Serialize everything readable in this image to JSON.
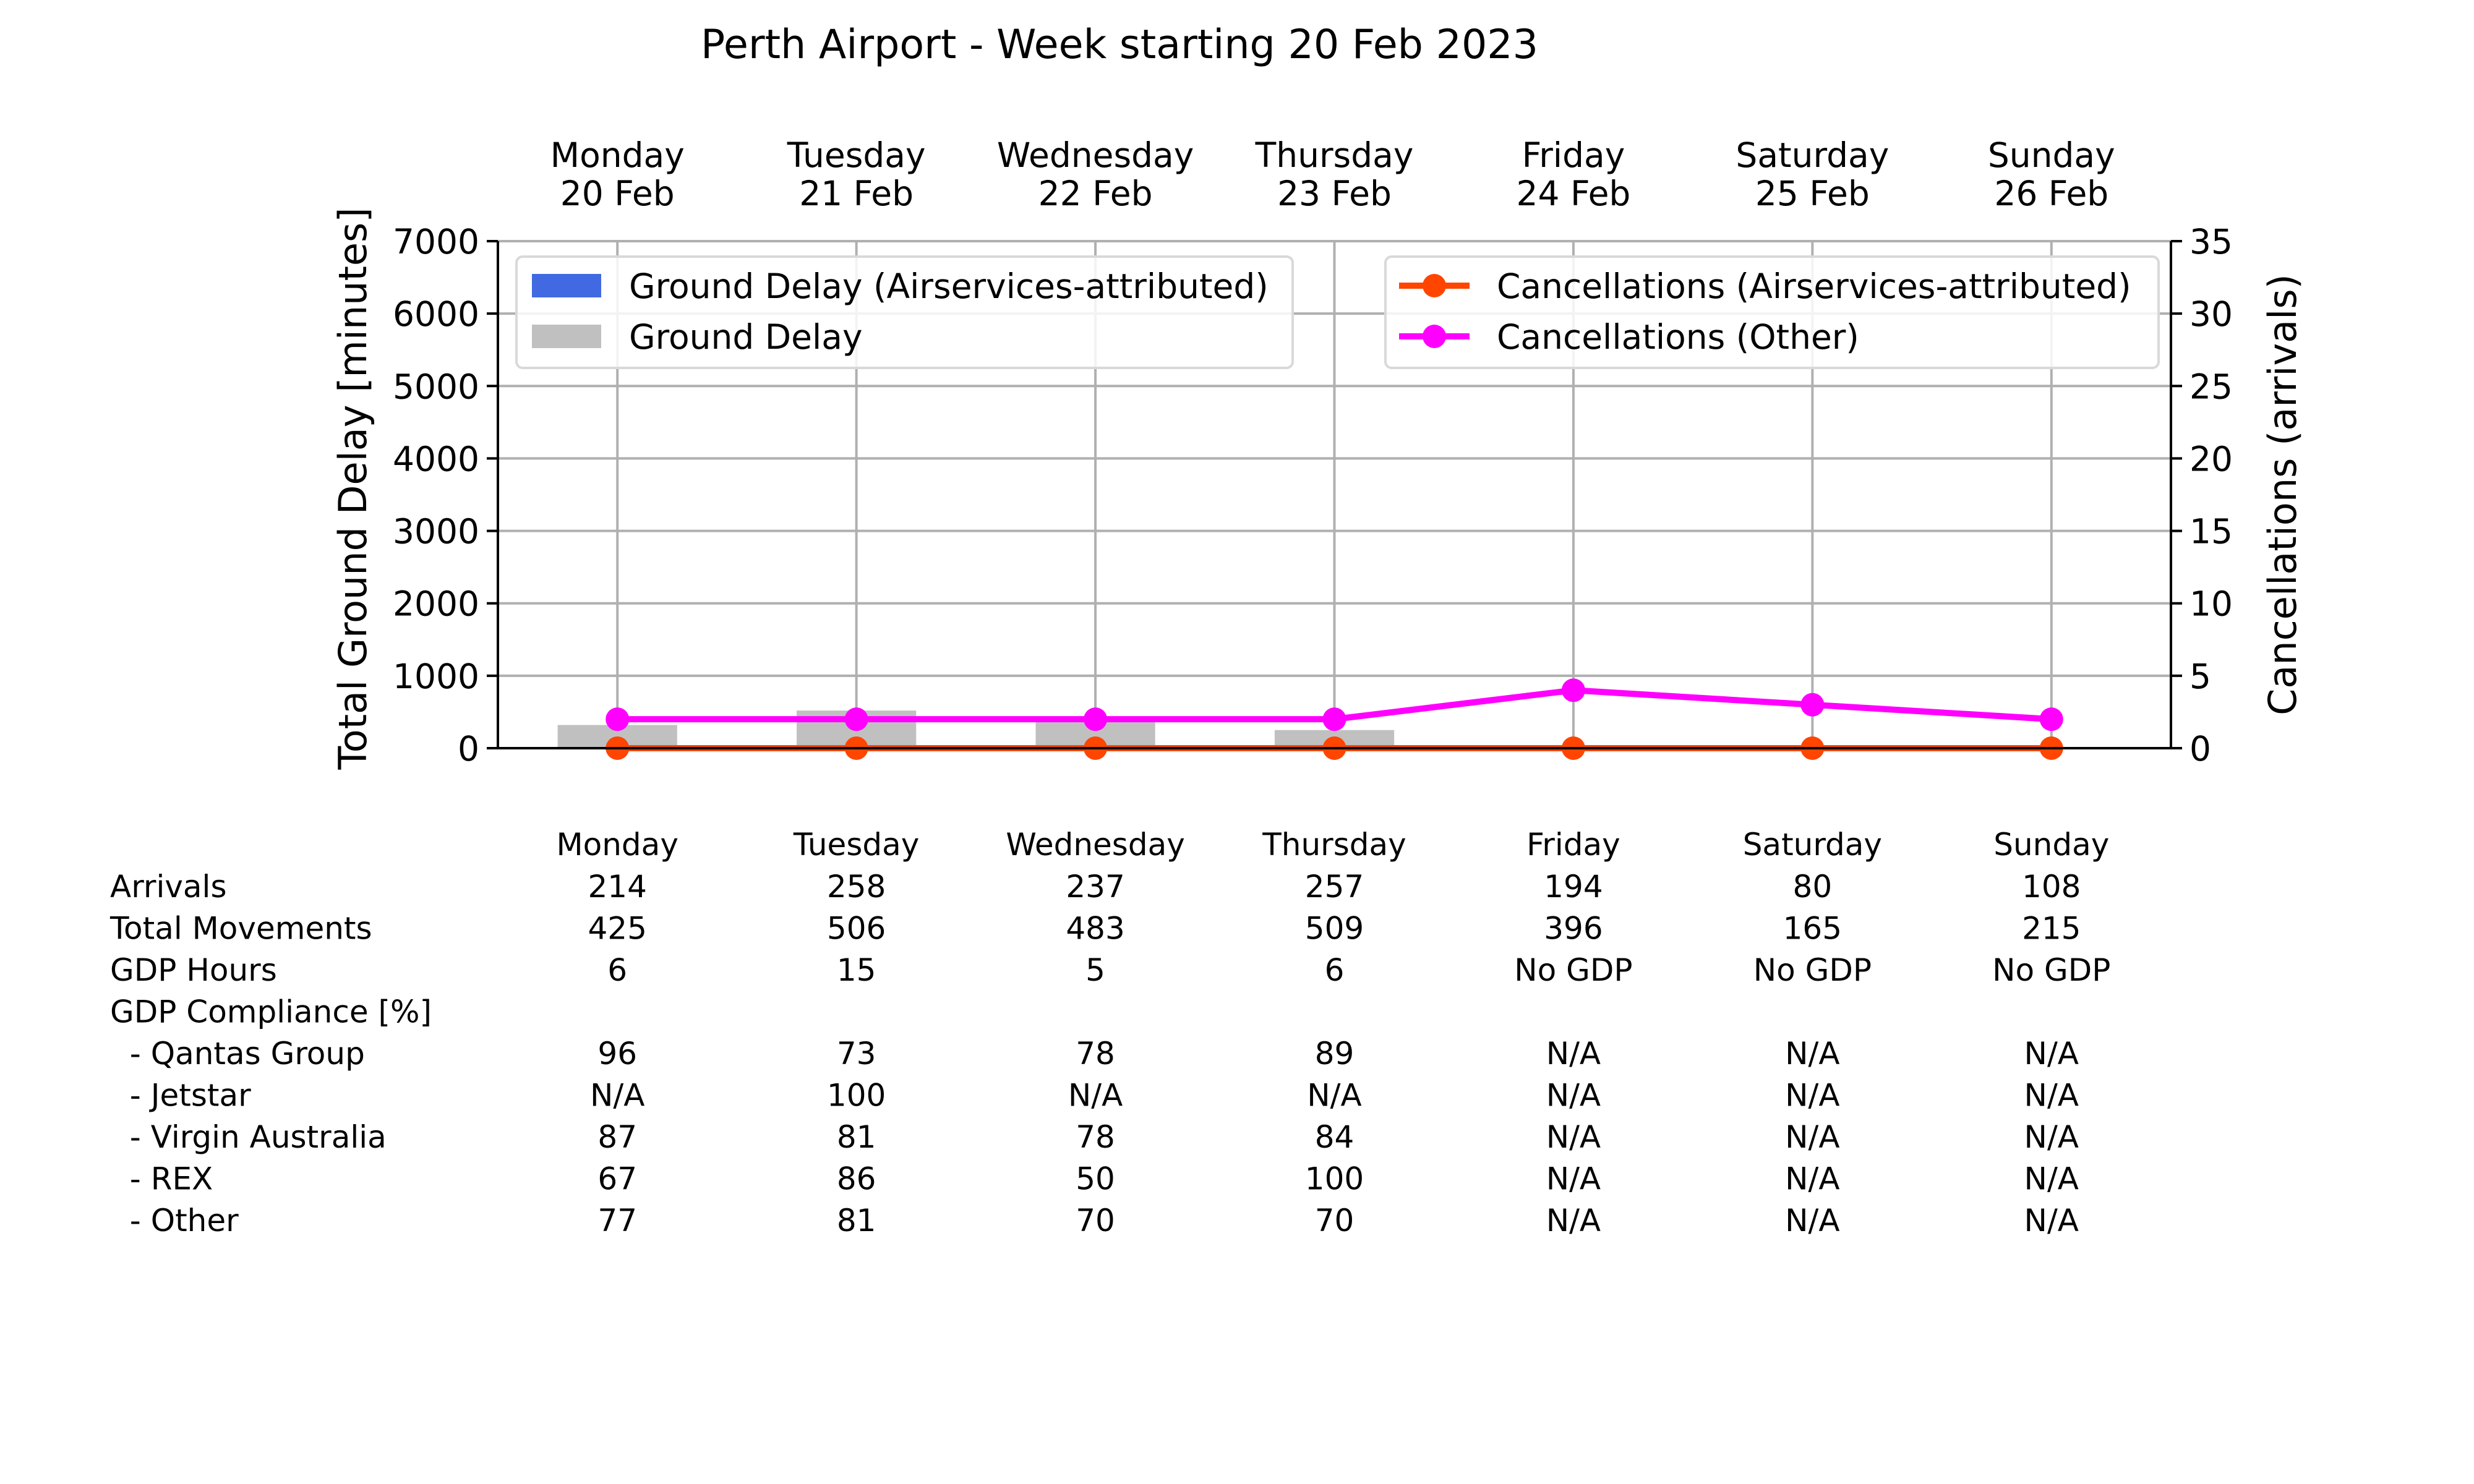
{
  "title": "Perth Airport - Week starting 20 Feb 2023",
  "chart_data": {
    "type": "bar",
    "days": [
      {
        "name": "Monday",
        "date": "20 Feb"
      },
      {
        "name": "Tuesday",
        "date": "21 Feb"
      },
      {
        "name": "Wednesday",
        "date": "22 Feb"
      },
      {
        "name": "Thursday",
        "date": "23 Feb"
      },
      {
        "name": "Friday",
        "date": "24 Feb"
      },
      {
        "name": "Saturday",
        "date": "25 Feb"
      },
      {
        "name": "Sunday",
        "date": "26 Feb"
      }
    ],
    "ylabel_left": "Total Ground Delay [minutes]",
    "ylabel_right": "Cancellations (arrivals)",
    "ylim_left": [
      0,
      7000
    ],
    "ylim_right": [
      0,
      35
    ],
    "yticks_left": [
      "0",
      "1000",
      "2000",
      "3000",
      "4000",
      "5000",
      "6000",
      "7000"
    ],
    "yticks_right": [
      "0",
      "5",
      "10",
      "15",
      "20",
      "25",
      "30",
      "35"
    ],
    "grid": true,
    "series": [
      {
        "name": "Ground Delay (Airservices-attributed)",
        "kind": "bar",
        "axis": "left",
        "color": "#4169e1",
        "values": [
          0,
          0,
          0,
          0,
          0,
          0,
          0
        ]
      },
      {
        "name": "Ground Delay",
        "kind": "bar",
        "axis": "left",
        "color": "#c0c0c0",
        "values": [
          320,
          520,
          400,
          250,
          0,
          0,
          0
        ]
      },
      {
        "name": "Cancellations (Airservices-attributed)",
        "kind": "line",
        "axis": "right",
        "color": "#ff4500",
        "values": [
          0,
          0,
          0,
          0,
          0,
          0,
          0
        ]
      },
      {
        "name": "Cancellations (Other)",
        "kind": "line",
        "axis": "right",
        "color": "#ff00ff",
        "values": [
          2,
          2,
          2,
          2,
          4,
          3,
          2
        ]
      }
    ],
    "legend_left_placement": "top-left",
    "legend_right_placement": "top-right"
  },
  "table": {
    "header": [
      "Monday",
      "Tuesday",
      "Wednesday",
      "Thursday",
      "Friday",
      "Saturday",
      "Sunday"
    ],
    "rows": [
      {
        "label": "Arrivals",
        "values": [
          "214",
          "258",
          "237",
          "257",
          "194",
          "80",
          "108"
        ]
      },
      {
        "label": "Total Movements",
        "values": [
          "425",
          "506",
          "483",
          "509",
          "396",
          "165",
          "215"
        ]
      },
      {
        "label": "GDP Hours",
        "values": [
          "6",
          "15",
          "5",
          "6",
          "No GDP",
          "No GDP",
          "No GDP"
        ]
      },
      {
        "label": "GDP Compliance [%]",
        "values": [
          "",
          "",
          "",
          "",
          "",
          "",
          ""
        ]
      },
      {
        "label": "  - Qantas Group",
        "values": [
          "96",
          "73",
          "78",
          "89",
          "N/A",
          "N/A",
          "N/A"
        ]
      },
      {
        "label": "  - Jetstar",
        "values": [
          "N/A",
          "100",
          "N/A",
          "N/A",
          "N/A",
          "N/A",
          "N/A"
        ]
      },
      {
        "label": "  - Virgin Australia",
        "values": [
          "87",
          "81",
          "78",
          "84",
          "N/A",
          "N/A",
          "N/A"
        ]
      },
      {
        "label": "  - REX",
        "values": [
          "67",
          "86",
          "50",
          "100",
          "N/A",
          "N/A",
          "N/A"
        ]
      },
      {
        "label": "  - Other",
        "values": [
          "77",
          "81",
          "70",
          "70",
          "N/A",
          "N/A",
          "N/A"
        ]
      }
    ]
  }
}
